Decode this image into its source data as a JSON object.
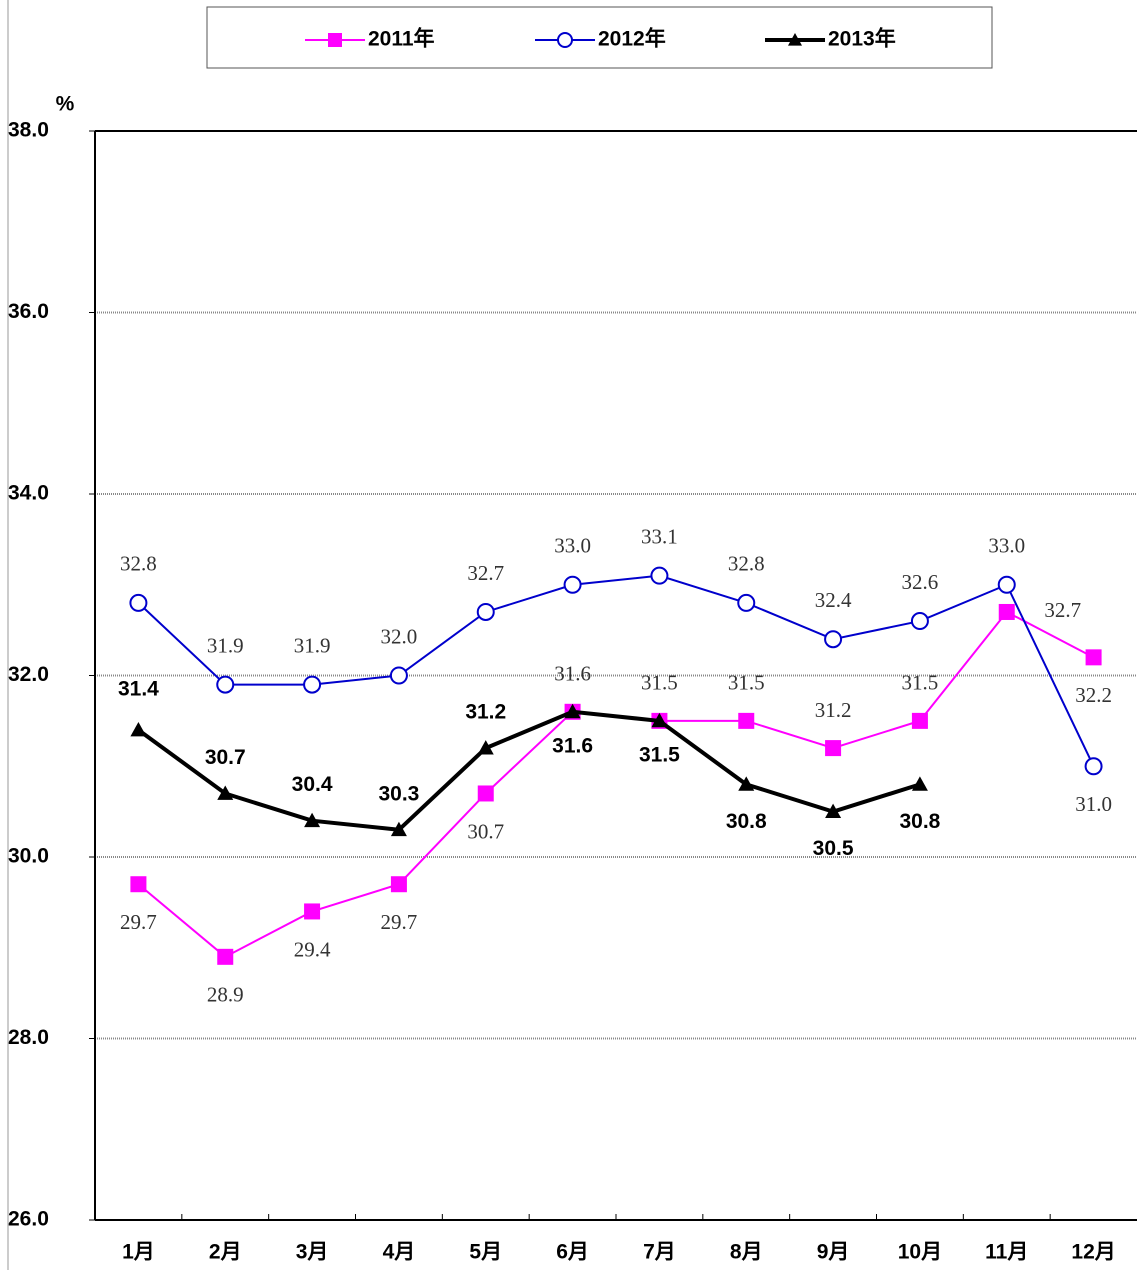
{
  "chart_data": {
    "type": "line",
    "y_unit": "%",
    "categories": [
      "1月",
      "2月",
      "3月",
      "4月",
      "5月",
      "6月",
      "7月",
      "8月",
      "9月",
      "10月",
      "11月",
      "12月"
    ],
    "series": [
      {
        "name": "2011年",
        "color": "#ff00ff",
        "marker": "square",
        "values": [
          29.7,
          28.9,
          29.4,
          29.7,
          30.7,
          31.6,
          31.5,
          31.5,
          31.2,
          31.5,
          32.7,
          32.2
        ],
        "value_labels": [
          "29.7",
          "28.9",
          "29.4",
          "29.7",
          "30.7",
          "31.6",
          "31.5",
          "31.5",
          "31.2",
          "31.5",
          "32.7",
          "32.2"
        ]
      },
      {
        "name": "2012年",
        "color": "#0000cc",
        "marker": "circle",
        "values": [
          32.8,
          31.9,
          31.9,
          32.0,
          32.7,
          33.0,
          33.1,
          32.8,
          32.4,
          32.6,
          33.0,
          31.0
        ],
        "value_labels": [
          "32.8",
          "31.9",
          "31.9",
          "32.0",
          "32.7",
          "33.0",
          "33.1",
          "32.8",
          "32.4",
          "32.6",
          "33.0",
          "31.0"
        ]
      },
      {
        "name": "2013年",
        "color": "#000000",
        "marker": "triangle",
        "values": [
          31.4,
          30.7,
          30.4,
          30.3,
          31.2,
          31.6,
          31.5,
          30.8,
          30.5,
          30.8,
          null,
          null
        ],
        "value_labels": [
          "31.4",
          "30.7",
          "30.4",
          "30.3",
          "31.2",
          "31.6",
          "31.5",
          "30.8",
          "30.5",
          "30.8",
          null,
          null
        ]
      }
    ],
    "ylim": [
      26,
      38
    ],
    "yticks": [
      {
        "value": 26,
        "label": "26.0"
      },
      {
        "value": 28,
        "label": "28.0"
      },
      {
        "value": 30,
        "label": "30.0"
      },
      {
        "value": 32,
        "label": "32.0"
      },
      {
        "value": 34,
        "label": "34.0"
      },
      {
        "value": 36,
        "label": "36.0"
      },
      {
        "value": 38,
        "label": "38.0"
      }
    ],
    "grid": true,
    "legend": "top"
  }
}
